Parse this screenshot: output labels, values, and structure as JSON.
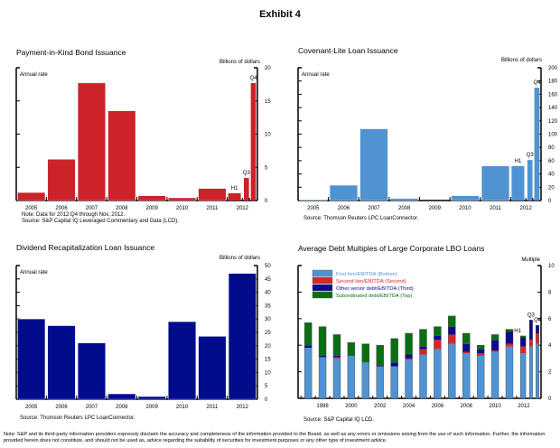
{
  "exhibit_title": "Exhibit 4",
  "footer_note": "Note: S&P and its third-party information providers expressly disclaim the accuracy and completeness of the information provided to the Board, as well as any errors or omissions arising from the use of such information. Further, the information provided herein does not constitute, and should not be used as, advice regarding the suitability of securities for investment purposes or any other type of investment advice.",
  "chart_data": [
    {
      "id": "pik",
      "type": "bar",
      "title": "Payment-in-Kind Bond Issuance",
      "ylabel": "Billions of dollars",
      "annotation": "Annual rate",
      "ylim": [
        0,
        20
      ],
      "yticks": [
        0,
        5,
        10,
        15,
        20
      ],
      "color": "#cc2229",
      "categories": [
        "2005",
        "2006",
        "2007",
        "2008",
        "2009",
        "2010",
        "2011",
        "2012"
      ],
      "bars": [
        {
          "label": "2005",
          "value": 1.2
        },
        {
          "label": "2006",
          "value": 6.2
        },
        {
          "label": "2007",
          "value": 17.7
        },
        {
          "label": "2008",
          "value": 13.5
        },
        {
          "label": "2009",
          "value": 0.7
        },
        {
          "label": "2010",
          "value": 0.4
        },
        {
          "label": "2011",
          "value": 1.8
        },
        {
          "label": "2012 H1",
          "value": 1.1,
          "tag": "H1"
        },
        {
          "label": "2012 Q3",
          "value": 3.4,
          "tag": "Q3"
        },
        {
          "label": "2012 Q4",
          "value": 17.7,
          "tag": "Q4"
        }
      ],
      "notes": [
        "Note: Data for 2012:Q4 through Nov. 2012.",
        "Source: S&P Capital IQ Leveraged Commentary and Data (LCD)."
      ]
    },
    {
      "id": "covlite",
      "type": "bar",
      "title": "Covenant-Lite Loan Issuance",
      "ylabel": "Billions of dollars",
      "annotation": "Annual rate",
      "ylim": [
        0,
        200
      ],
      "yticks": [
        0,
        20,
        40,
        60,
        80,
        100,
        120,
        140,
        160,
        180,
        200
      ],
      "color": "#4f93d2",
      "categories": [
        "2005",
        "2006",
        "2007",
        "2008",
        "2009",
        "2010",
        "2011",
        "2012"
      ],
      "bars": [
        {
          "label": "2005",
          "value": 1
        },
        {
          "label": "2006",
          "value": 23
        },
        {
          "label": "2007",
          "value": 108
        },
        {
          "label": "2008",
          "value": 3
        },
        {
          "label": "2009",
          "value": 0
        },
        {
          "label": "2010",
          "value": 7
        },
        {
          "label": "2011",
          "value": 52
        },
        {
          "label": "2012 H1",
          "value": 52,
          "tag": "H1"
        },
        {
          "label": "2012 Q3",
          "value": 61,
          "tag": "Q3"
        },
        {
          "label": "2012 Q4",
          "value": 170,
          "tag": "Q4"
        }
      ],
      "notes": [
        "Source: Thomson Reuters LPC LoanConnector."
      ]
    },
    {
      "id": "divrecap",
      "type": "bar",
      "title": "Dividend Recapitalization Loan Issuance",
      "ylabel": "Billions of dollars",
      "annotation": "Annual rate",
      "ylim": [
        0,
        50
      ],
      "yticks": [
        0,
        5,
        10,
        15,
        20,
        25,
        30,
        35,
        40,
        45,
        50
      ],
      "color": "#000c8c",
      "categories": [
        "2005",
        "2006",
        "2007",
        "2008",
        "2009",
        "2010",
        "2011",
        "2012"
      ],
      "bars": [
        {
          "label": "2005",
          "value": 30
        },
        {
          "label": "2006",
          "value": 27.5
        },
        {
          "label": "2007",
          "value": 21
        },
        {
          "label": "2008",
          "value": 2
        },
        {
          "label": "2009",
          "value": 1
        },
        {
          "label": "2010",
          "value": 29
        },
        {
          "label": "2011",
          "value": 23.5
        },
        {
          "label": "2012",
          "value": 47
        }
      ],
      "notes": [
        "Source: Thomson Reuters LPC LoanConnector."
      ]
    },
    {
      "id": "lbo",
      "type": "stacked-bar",
      "title": "Average Debt Multiples of Large Corporate LBO Loans",
      "ylabel": "Multiple",
      "ylim": [
        0,
        10
      ],
      "yticks": [
        0,
        2,
        4,
        6,
        8,
        10
      ],
      "xticklabels": [
        "1998",
        "2000",
        "2002",
        "2004",
        "2006",
        "2008",
        "2010",
        "2012"
      ],
      "legend_position": "top-left",
      "series": [
        {
          "name": "First lien/EBITDA (Bottom)",
          "color": "#4f93d2"
        },
        {
          "name": "Second lien/EBITDA (Second)",
          "color": "#d62728"
        },
        {
          "name": "Other senior debt/EBITDA (Third)",
          "color": "#0b0b8c"
        },
        {
          "name": "Subordinated debt/EBITDA (Top)",
          "color": "#0a6e12"
        }
      ],
      "bars": [
        {
          "label": "1997",
          "values": [
            3.8,
            0.0,
            0.2,
            1.7
          ]
        },
        {
          "label": "1998",
          "values": [
            3.1,
            0.0,
            0.1,
            2.2
          ]
        },
        {
          "label": "1999",
          "values": [
            3.0,
            0.1,
            0.1,
            1.6
          ]
        },
        {
          "label": "2000",
          "values": [
            3.2,
            0.0,
            0.0,
            1.0
          ]
        },
        {
          "label": "2001",
          "values": [
            2.7,
            0.0,
            0.0,
            1.4
          ]
        },
        {
          "label": "2002",
          "values": [
            2.4,
            0.0,
            0.1,
            1.5
          ]
        },
        {
          "label": "2003",
          "values": [
            2.4,
            0.0,
            0.3,
            1.8
          ]
        },
        {
          "label": "2004",
          "values": [
            2.9,
            0.1,
            0.3,
            1.6
          ]
        },
        {
          "label": "2005",
          "values": [
            3.3,
            0.4,
            0.2,
            1.3
          ]
        },
        {
          "label": "2006",
          "values": [
            3.7,
            0.7,
            0.3,
            0.7
          ]
        },
        {
          "label": "2007",
          "values": [
            4.1,
            0.7,
            0.6,
            0.8
          ]
        },
        {
          "label": "2008",
          "values": [
            3.4,
            0.1,
            0.6,
            0.8
          ]
        },
        {
          "label": "2009",
          "values": [
            3.2,
            0.2,
            0.3,
            0.3
          ]
        },
        {
          "label": "2010",
          "values": [
            3.5,
            0.1,
            0.8,
            0.4
          ]
        },
        {
          "label": "2011",
          "values": [
            3.9,
            0.2,
            0.9,
            0.2
          ]
        },
        {
          "label": "2012 H1",
          "values": [
            3.4,
            0.5,
            0.7,
            0.1
          ],
          "tag": "H1"
        },
        {
          "label": "2012 Q3",
          "values": [
            3.9,
            0.5,
            1.5,
            0.0
          ],
          "tag": "Q3"
        },
        {
          "label": "2012 Q4",
          "values": [
            4.1,
            0.8,
            0.6,
            0.0
          ],
          "tag": "Q4"
        }
      ],
      "notes": [
        "Source: S&P Capital IQ LCD."
      ]
    }
  ]
}
